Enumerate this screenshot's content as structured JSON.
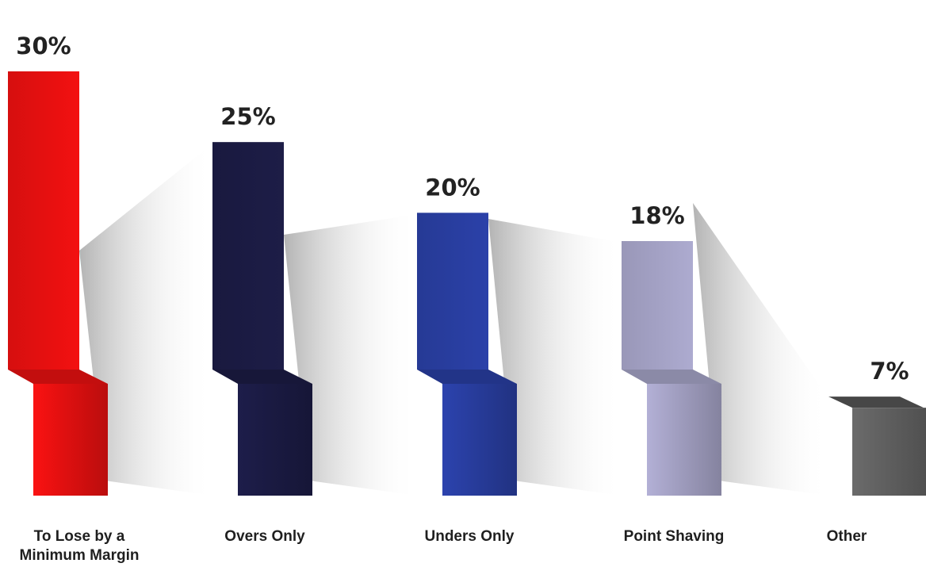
{
  "chart_data": {
    "type": "bar",
    "title": "",
    "xlabel": "",
    "ylabel": "",
    "ylim": [
      0,
      30
    ],
    "unit": "%",
    "grid": false,
    "legend": "none",
    "categories": [
      [
        "To Lose by a",
        "Minimum Margin"
      ],
      [
        "Overs Only"
      ],
      [
        "Unders Only"
      ],
      [
        "Point Shaving"
      ],
      [
        "Other"
      ]
    ],
    "values": [
      30,
      25,
      20,
      18,
      7
    ],
    "value_labels": [
      "30%",
      "25%",
      "20%",
      "18%",
      "7%"
    ],
    "colors": [
      "#ee1111",
      "#1c1c46",
      "#2a40a6",
      "#aaa8cc",
      "#666666"
    ]
  }
}
